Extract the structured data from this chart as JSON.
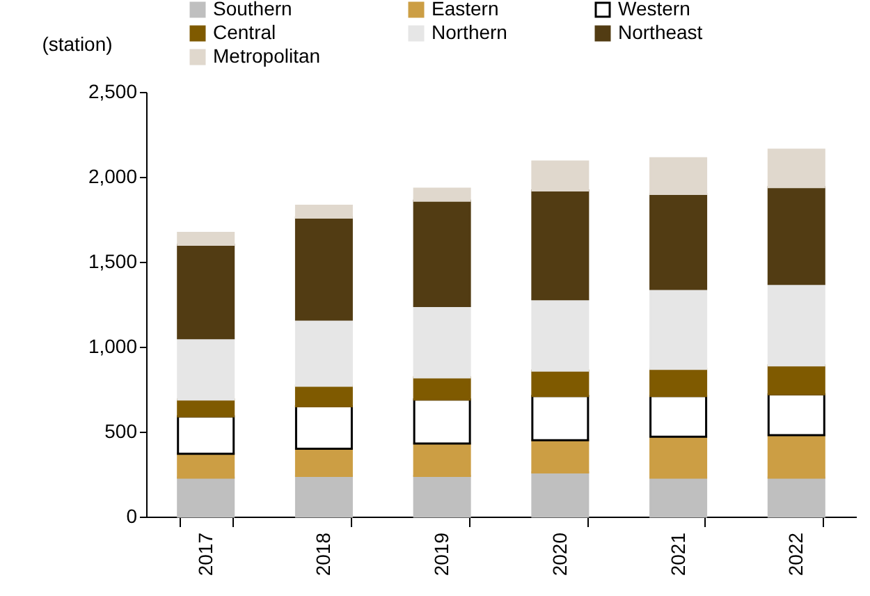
{
  "chart_data": {
    "type": "bar",
    "stacked": true,
    "ylabel": "(station)",
    "categories": [
      "2017",
      "2018",
      "2019",
      "2020",
      "2021",
      "2022"
    ],
    "series": [
      {
        "name": "Southern",
        "color": "#bfbfbf",
        "values": [
          230,
          240,
          240,
          260,
          230,
          230
        ]
      },
      {
        "name": "Eastern",
        "color": "#cc9e44",
        "values": [
          140,
          160,
          190,
          190,
          240,
          250
        ]
      },
      {
        "name": "Western",
        "color": "#ffffff",
        "values": [
          220,
          250,
          260,
          260,
          240,
          240
        ]
      },
      {
        "name": "Central",
        "color": "#7f5a00",
        "values": [
          100,
          120,
          130,
          150,
          160,
          170
        ]
      },
      {
        "name": "Northern",
        "color": "#e6e6e6",
        "values": [
          360,
          390,
          420,
          420,
          470,
          480
        ]
      },
      {
        "name": "Northeast",
        "color": "#523c13",
        "values": [
          550,
          600,
          620,
          640,
          560,
          570
        ]
      },
      {
        "name": "Metropolitan",
        "color": "#e0d8cd",
        "values": [
          70,
          70,
          70,
          170,
          210,
          220
        ]
      }
    ],
    "ylim": [
      0,
      2500
    ],
    "yticks": [
      0,
      500,
      {
        "value": 1000,
        "label": "1,000"
      },
      {
        "value": 1500,
        "label": "1,500"
      },
      {
        "value": 2000,
        "label": "2,000"
      },
      {
        "value": 2500,
        "label": "2,500"
      }
    ],
    "grid": false,
    "legend": "top"
  }
}
